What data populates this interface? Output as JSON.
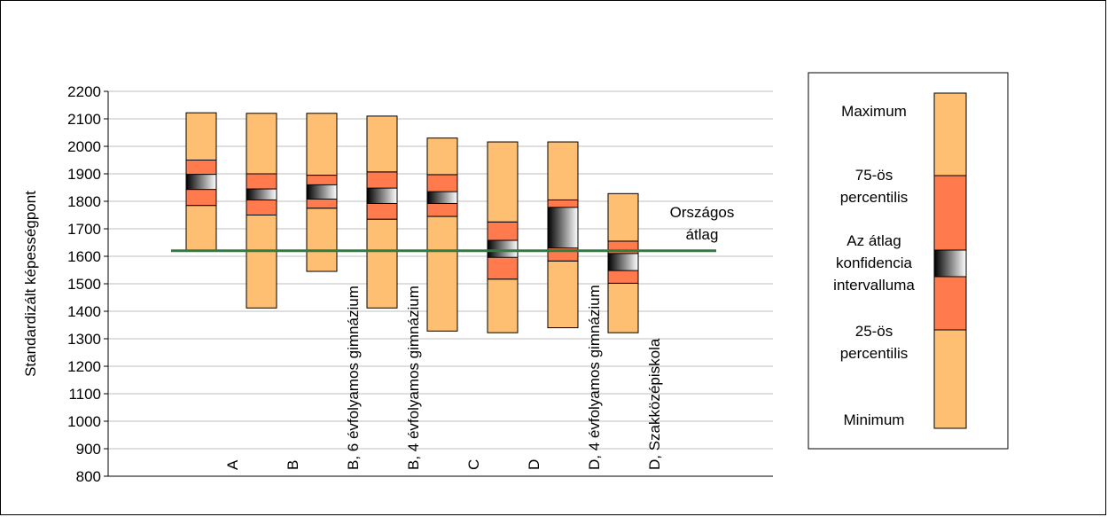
{
  "chart_data": {
    "type": "box-range",
    "ylabel": "Standardizált képességpont",
    "ylim": [
      800,
      2200
    ],
    "ytick_step": 100,
    "yticks": [
      "2200",
      "2100",
      "2000",
      "1900",
      "1800",
      "1700",
      "1600",
      "1500",
      "1400",
      "1300",
      "1200",
      "1100",
      "1000",
      "900",
      "800"
    ],
    "categories": [
      "A",
      "B",
      "B, 6 évfolyamos gimnázium",
      "B, 4 évfolyamos gimnázium",
      "C",
      "D",
      "D, 4 évfolyamos gimnázium",
      "D, Szakközépiskola"
    ],
    "series": [
      {
        "name": "A",
        "min": 1620,
        "p25": 1785,
        "ci_low": 1843,
        "ci_high": 1898,
        "p75": 1950,
        "max": 2122
      },
      {
        "name": "B",
        "min": 1412,
        "p25": 1750,
        "ci_low": 1805,
        "ci_high": 1845,
        "p75": 1900,
        "max": 2120
      },
      {
        "name": "B, 6 évfolyamos gimnázium",
        "min": 1545,
        "p25": 1775,
        "ci_low": 1808,
        "ci_high": 1860,
        "p75": 1895,
        "max": 2120
      },
      {
        "name": "B, 4 évfolyamos gimnázium",
        "min": 1412,
        "p25": 1735,
        "ci_low": 1792,
        "ci_high": 1848,
        "p75": 1907,
        "max": 2110
      },
      {
        "name": "C",
        "min": 1328,
        "p25": 1745,
        "ci_low": 1792,
        "ci_high": 1835,
        "p75": 1897,
        "max": 2030
      },
      {
        "name": "D",
        "min": 1322,
        "p25": 1517,
        "ci_low": 1596,
        "ci_high": 1658,
        "p75": 1725,
        "max": 2016
      },
      {
        "name": "D, 4 évfolyamos gimnázium",
        "min": 1340,
        "p25": 1583,
        "ci_low": 1630,
        "ci_high": 1778,
        "p75": 1805,
        "max": 2016
      },
      {
        "name": "D, Szakközépiskola",
        "min": 1322,
        "p25": 1502,
        "ci_low": 1548,
        "ci_high": 1610,
        "p75": 1655,
        "max": 1828
      }
    ],
    "national_average": 1620,
    "national_average_label": [
      "Országos",
      "átlag"
    ],
    "colors": {
      "outer": "#FFBF72",
      "inner": "#FF7A4D",
      "ci_dark": "#000000",
      "ci_light": "#FFFFFF",
      "avg_line": "#2E7D3E",
      "grid": "#BFBFBF"
    },
    "legend": {
      "position": "right",
      "labels": {
        "max": [
          "Maximum"
        ],
        "p75": [
          "75-ös",
          "percentilis"
        ],
        "ci": [
          "Az átlag",
          "konfidencia",
          "intervalluma"
        ],
        "p25": [
          "25-ös",
          "percentilis"
        ],
        "min": [
          "Minimum"
        ]
      }
    }
  }
}
